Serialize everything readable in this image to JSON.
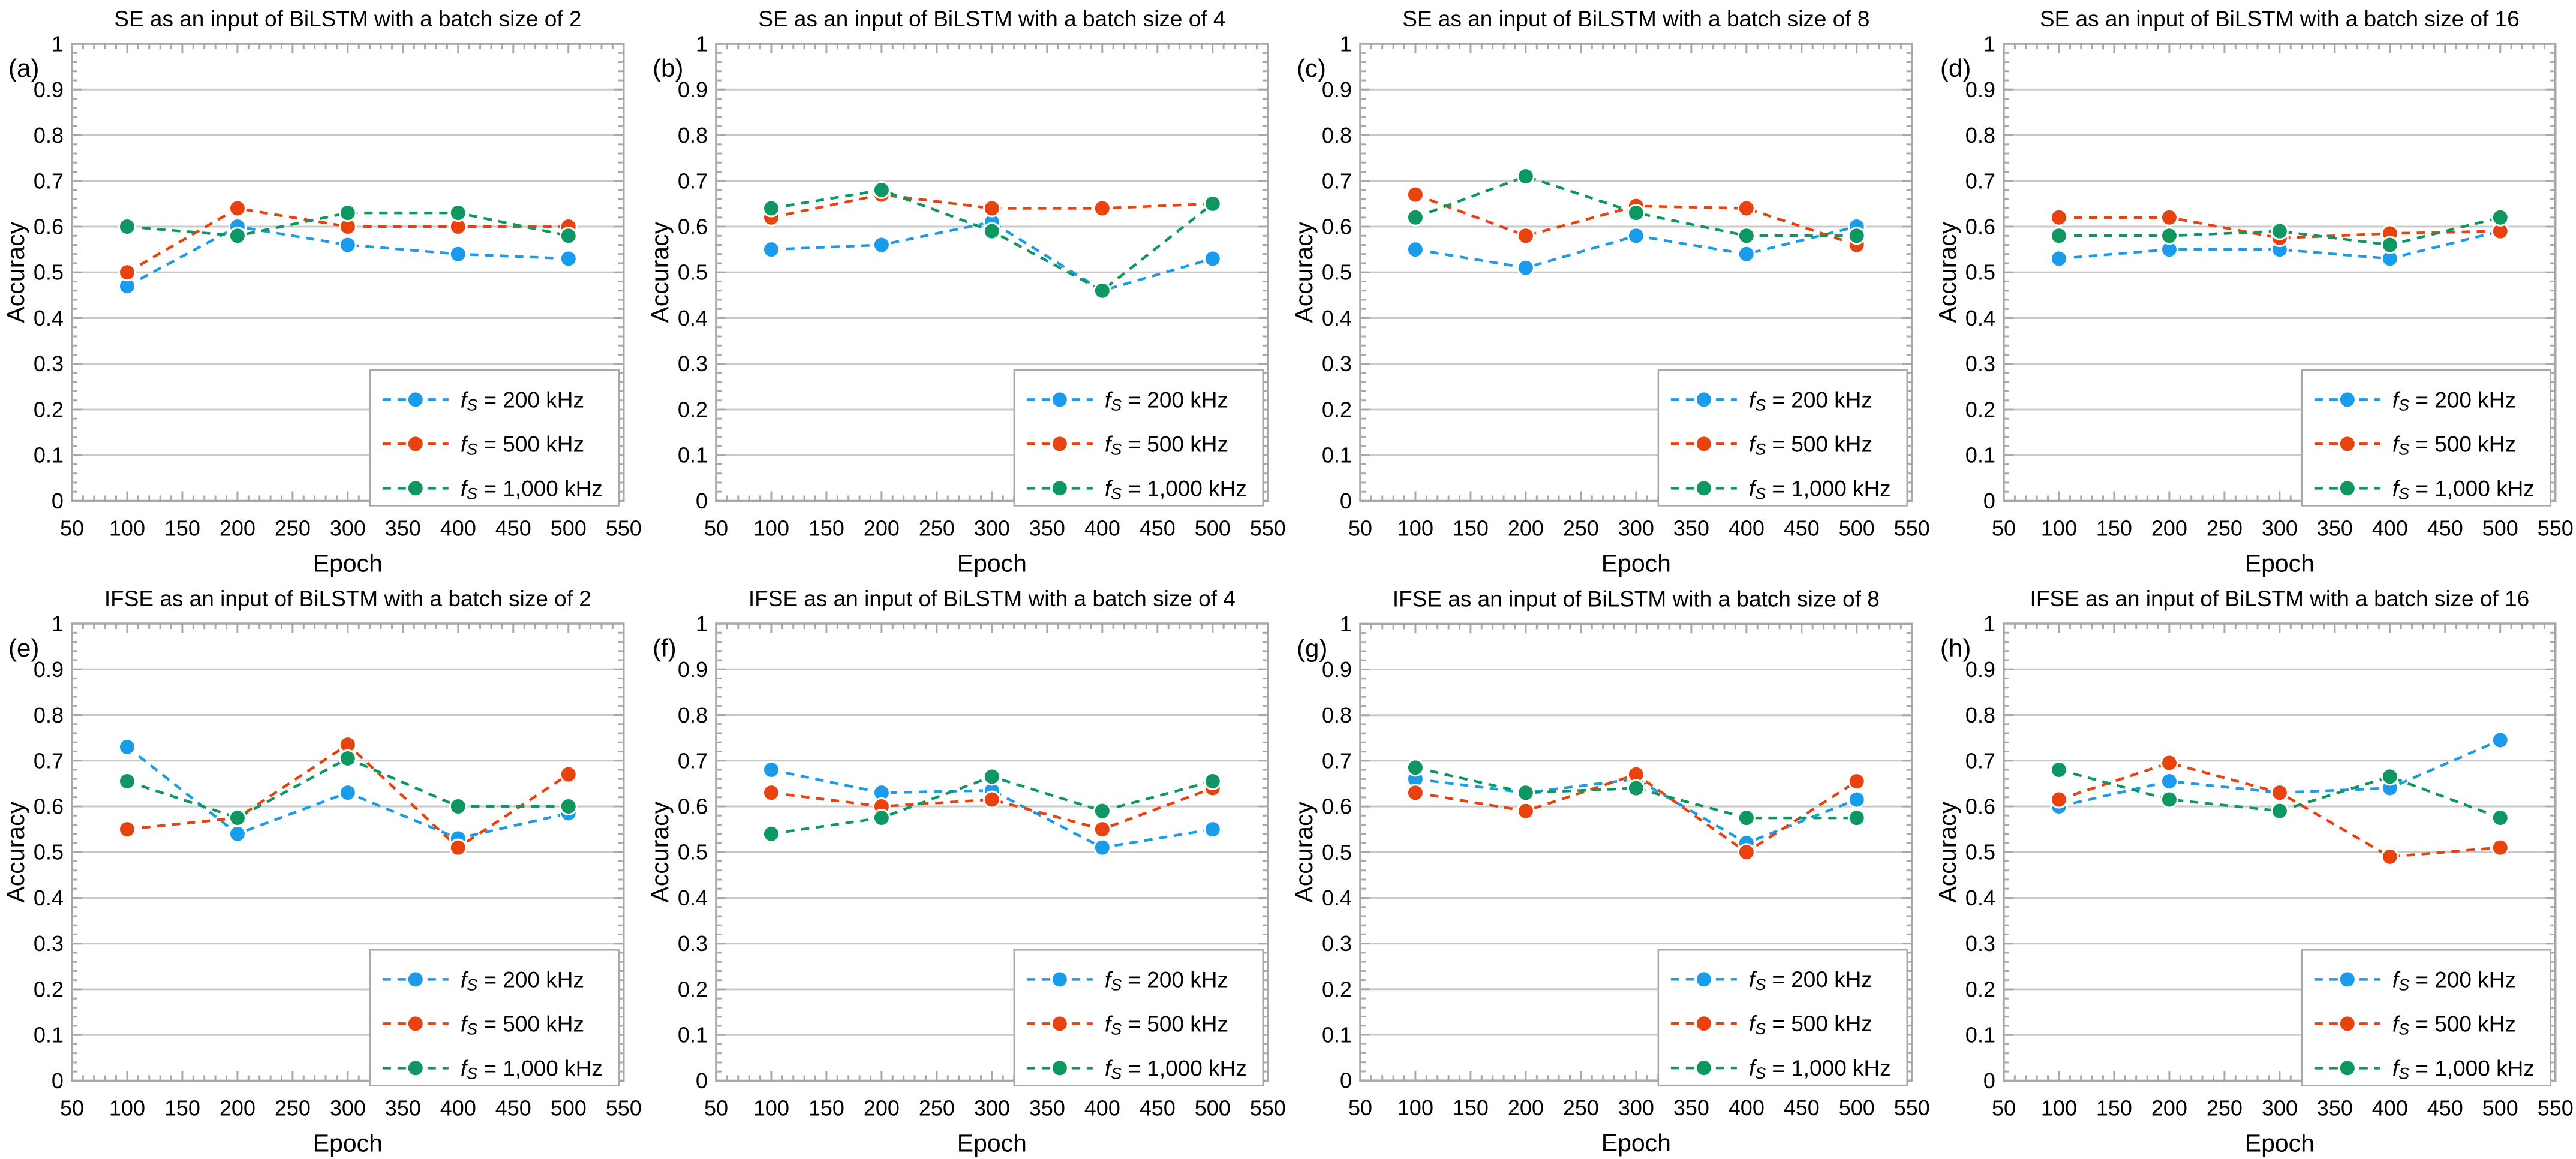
{
  "page": {
    "background": "#ffffff"
  },
  "colors": {
    "blue": "#1B9CEB",
    "red": "#E8430F",
    "green": "#0E9760",
    "frame": "#A8A8A8",
    "grid": "#C9C9C9",
    "tick": "#A8A8A8",
    "legend_border": "#A8A8A8",
    "text": "#000000",
    "marker_ring": "#FFFFFF"
  },
  "axes": {
    "xlabel": "Epoch",
    "ylabel": "Accuracy",
    "xlim": [
      50,
      550
    ],
    "ylim": [
      0,
      1
    ],
    "x_ticks": [
      50,
      100,
      150,
      200,
      250,
      300,
      350,
      400,
      450,
      500,
      550
    ],
    "x_tick_labels": [
      "50",
      "100",
      "150",
      "200",
      "250",
      "300",
      "350",
      "400",
      "450",
      "500",
      "550"
    ],
    "y_ticks": [
      0,
      0.1,
      0.2,
      0.3,
      0.4,
      0.5,
      0.6,
      0.7,
      0.8,
      0.9,
      1
    ],
    "y_tick_labels": [
      "0",
      "0.1",
      "0.2",
      "0.3",
      "0.4",
      "0.5",
      "0.6",
      "0.7",
      "0.8",
      "0.9",
      "1"
    ],
    "x_minor_step": 10,
    "y_minor_step": 0.02,
    "grid": "horizontal-only",
    "legend_position": "lower-right"
  },
  "legend": {
    "entries": [
      {
        "sym": "f",
        "sub": "S",
        "rest": " = 200 kHz",
        "label": "fS = 200 kHz",
        "series": "blue"
      },
      {
        "sym": "f",
        "sub": "S",
        "rest": " = 500 kHz",
        "label": "fS = 500 kHz",
        "series": "red"
      },
      {
        "sym": "f",
        "sub": "S",
        "rest": " = 1,000 kHz",
        "label": "fS = 1,000 kHz",
        "series": "green"
      }
    ]
  },
  "chart_data": [
    {
      "type": "line",
      "panel": "(a)",
      "title": "SE as an input of BiLSTM with a batch size of 2",
      "input": "SE",
      "batch_size": 2,
      "x": [
        100,
        200,
        300,
        400,
        500
      ],
      "series": [
        {
          "name": "fS = 200 kHz",
          "color_key": "blue",
          "values": [
            0.47,
            0.6,
            0.56,
            0.54,
            0.53
          ]
        },
        {
          "name": "fS = 500 kHz",
          "color_key": "red",
          "values": [
            0.5,
            0.64,
            0.6,
            0.6,
            0.6
          ]
        },
        {
          "name": "fS = 1,000 kHz",
          "color_key": "green",
          "values": [
            0.6,
            0.58,
            0.63,
            0.63,
            0.58
          ]
        }
      ]
    },
    {
      "type": "line",
      "panel": "(b)",
      "title": "SE as an input of BiLSTM with a batch size of 4",
      "input": "SE",
      "batch_size": 4,
      "x": [
        100,
        200,
        300,
        400,
        500
      ],
      "series": [
        {
          "name": "fS = 200 kHz",
          "color_key": "blue",
          "values": [
            0.55,
            0.56,
            0.61,
            0.46,
            0.53
          ]
        },
        {
          "name": "fS = 500 kHz",
          "color_key": "red",
          "values": [
            0.62,
            0.67,
            0.64,
            0.64,
            0.65
          ]
        },
        {
          "name": "fS = 1,000 kHz",
          "color_key": "green",
          "values": [
            0.64,
            0.68,
            0.59,
            0.46,
            0.65
          ]
        }
      ]
    },
    {
      "type": "line",
      "panel": "(c)",
      "title": "SE as an input of BiLSTM with a batch size of 8",
      "input": "SE",
      "batch_size": 8,
      "x": [
        100,
        200,
        300,
        400,
        500
      ],
      "series": [
        {
          "name": "fS = 200 kHz",
          "color_key": "blue",
          "values": [
            0.55,
            0.51,
            0.58,
            0.54,
            0.6
          ]
        },
        {
          "name": "fS = 500 kHz",
          "color_key": "red",
          "values": [
            0.67,
            0.58,
            0.645,
            0.64,
            0.56
          ]
        },
        {
          "name": "fS = 1,000 kHz",
          "color_key": "green",
          "values": [
            0.62,
            0.71,
            0.63,
            0.58,
            0.58
          ]
        }
      ]
    },
    {
      "type": "line",
      "panel": "(d)",
      "title": "SE as an input of BiLSTM with a batch size of 16",
      "input": "SE",
      "batch_size": 16,
      "x": [
        100,
        200,
        300,
        400,
        500
      ],
      "series": [
        {
          "name": "fS = 200 kHz",
          "color_key": "blue",
          "values": [
            0.53,
            0.55,
            0.55,
            0.53,
            0.59
          ]
        },
        {
          "name": "fS = 500 kHz",
          "color_key": "red",
          "values": [
            0.62,
            0.62,
            0.575,
            0.585,
            0.59
          ]
        },
        {
          "name": "fS = 1,000 kHz",
          "color_key": "green",
          "values": [
            0.58,
            0.58,
            0.59,
            0.56,
            0.62
          ]
        }
      ]
    },
    {
      "type": "line",
      "panel": "(e)",
      "title": "IFSE as an input of BiLSTM with a batch size of 2",
      "input": "IFSE",
      "batch_size": 2,
      "x": [
        100,
        200,
        300,
        400,
        500
      ],
      "series": [
        {
          "name": "fS = 200 kHz",
          "color_key": "blue",
          "values": [
            0.73,
            0.54,
            0.63,
            0.53,
            0.585
          ]
        },
        {
          "name": "fS = 500 kHz",
          "color_key": "red",
          "values": [
            0.55,
            0.575,
            0.735,
            0.51,
            0.67
          ]
        },
        {
          "name": "fS = 1,000 kHz",
          "color_key": "green",
          "values": [
            0.655,
            0.575,
            0.705,
            0.6,
            0.6
          ]
        }
      ]
    },
    {
      "type": "line",
      "panel": "(f)",
      "title": "IFSE as an input of BiLSTM with a batch size of 4",
      "input": "IFSE",
      "batch_size": 4,
      "x": [
        100,
        200,
        300,
        400,
        500
      ],
      "series": [
        {
          "name": "fS = 200 kHz",
          "color_key": "blue",
          "values": [
            0.68,
            0.63,
            0.635,
            0.51,
            0.55
          ]
        },
        {
          "name": "fS = 500 kHz",
          "color_key": "red",
          "values": [
            0.63,
            0.6,
            0.615,
            0.55,
            0.64
          ]
        },
        {
          "name": "fS = 1,000 kHz",
          "color_key": "green",
          "values": [
            0.54,
            0.575,
            0.665,
            0.59,
            0.655
          ]
        }
      ]
    },
    {
      "type": "line",
      "panel": "(g)",
      "title": "IFSE as an input of BiLSTM with a batch size of 8",
      "input": "IFSE",
      "batch_size": 8,
      "x": [
        100,
        200,
        300,
        400,
        500
      ],
      "series": [
        {
          "name": "fS = 200 kHz",
          "color_key": "blue",
          "values": [
            0.66,
            0.63,
            0.66,
            0.52,
            0.615
          ]
        },
        {
          "name": "fS = 500 kHz",
          "color_key": "red",
          "values": [
            0.63,
            0.59,
            0.67,
            0.5,
            0.655
          ]
        },
        {
          "name": "fS = 1,000 kHz",
          "color_key": "green",
          "values": [
            0.685,
            0.63,
            0.64,
            0.575,
            0.575
          ]
        }
      ]
    },
    {
      "type": "line",
      "panel": "(h)",
      "title": "IFSE as an input of BiLSTM with a batch size of 16",
      "input": "IFSE",
      "batch_size": 16,
      "x": [
        100,
        200,
        300,
        400,
        500
      ],
      "series": [
        {
          "name": "fS = 200 kHz",
          "color_key": "blue",
          "values": [
            0.6,
            0.655,
            0.63,
            0.64,
            0.745
          ]
        },
        {
          "name": "fS = 500 kHz",
          "color_key": "red",
          "values": [
            0.615,
            0.695,
            0.63,
            0.49,
            0.51
          ]
        },
        {
          "name": "fS = 1,000 kHz",
          "color_key": "green",
          "values": [
            0.68,
            0.615,
            0.59,
            0.665,
            0.575
          ]
        }
      ]
    }
  ]
}
